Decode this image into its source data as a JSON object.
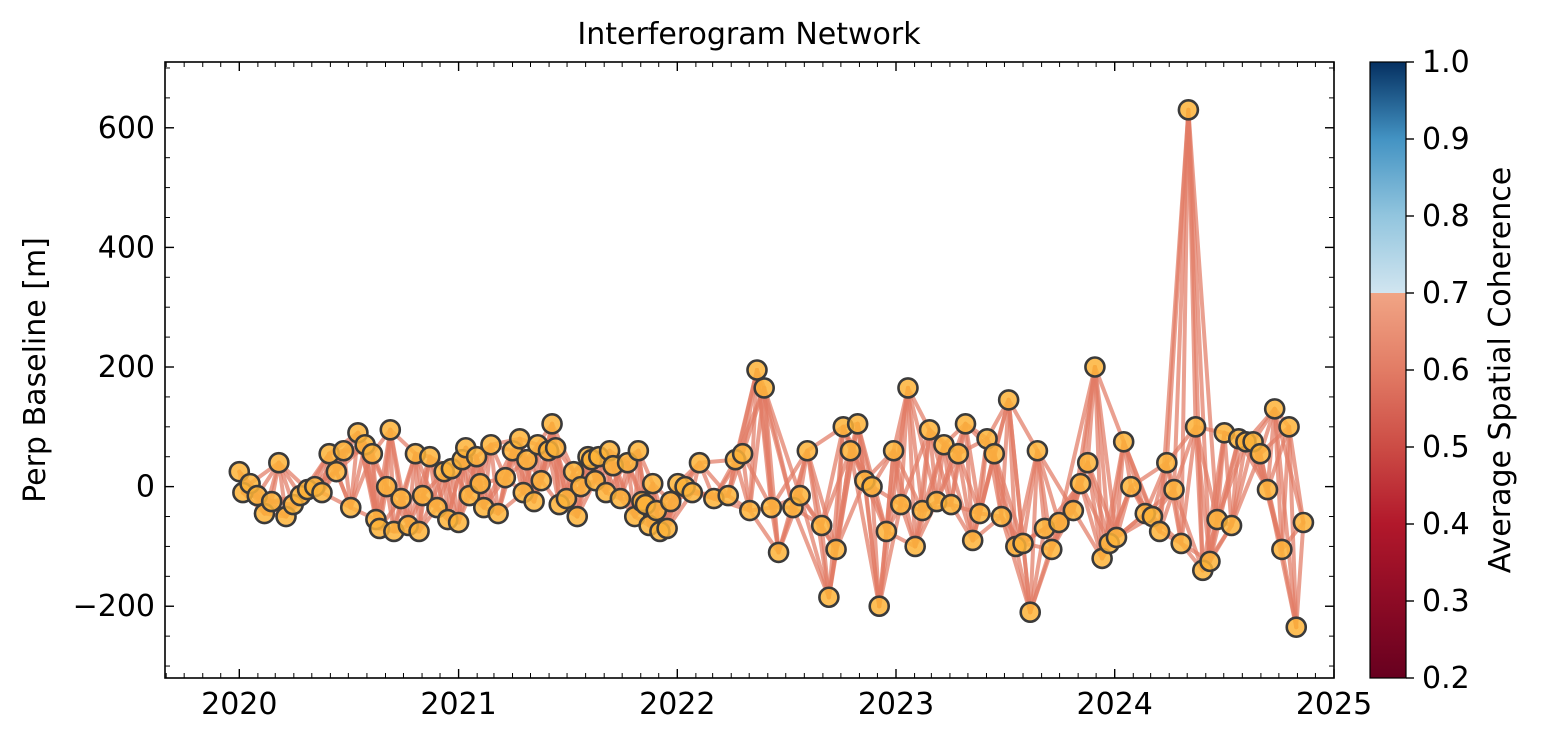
{
  "chart_data": {
    "type": "scatter",
    "title": "Interferogram Network",
    "xlabel": "",
    "ylabel": "Perp Baseline [m]",
    "xlim": [
      "2019-08-30",
      "2025-01-01"
    ],
    "ylim": [
      -320,
      710
    ],
    "x_ticks": [
      "2020",
      "2021",
      "2022",
      "2023",
      "2024",
      "2025"
    ],
    "x_tick_dates": [
      "2020-01-01",
      "2021-01-01",
      "2022-01-01",
      "2023-01-01",
      "2024-01-01",
      "2025-01-01"
    ],
    "y_ticks": [
      -200,
      0,
      200,
      400,
      600
    ],
    "y_tick_labels": [
      "−200",
      "0",
      "200",
      "400",
      "600"
    ],
    "grid": false,
    "legend": "none",
    "colors": {
      "marker_fill": "#fdb338",
      "marker_edge": "#3a3a3a",
      "edge_line": "#e27c65"
    },
    "edge_coherence_approx": 0.62,
    "colorbar": {
      "label": "Average Spatial Coherence",
      "range": [
        0.2,
        1.0
      ],
      "ticks": [
        "0.2",
        "0.3",
        "0.4",
        "0.5",
        "0.6",
        "0.7",
        "0.8",
        "0.9",
        "1.0"
      ],
      "colormap": "RdBu",
      "stops": [
        {
          "value": 0.2,
          "color": "#67001f"
        },
        {
          "value": 0.3,
          "color": "#8d0b25"
        },
        {
          "value": 0.4,
          "color": "#b2182b"
        },
        {
          "value": 0.5,
          "color": "#cc4c45"
        },
        {
          "value": 0.6,
          "color": "#e27c65"
        },
        {
          "value": 0.7,
          "color": "#f1a585"
        },
        {
          "value": 0.7,
          "color": "#d1e5f0"
        },
        {
          "value": 0.8,
          "color": "#92c5de"
        },
        {
          "value": 0.9,
          "color": "#4393c3"
        },
        {
          "value": 1.0,
          "color": "#053061"
        }
      ]
    },
    "acquisitions": [
      {
        "date": "2020-01-01",
        "bperp": 25
      },
      {
        "date": "2020-01-07",
        "bperp": -10
      },
      {
        "date": "2020-01-19",
        "bperp": 5
      },
      {
        "date": "2020-01-31",
        "bperp": -15
      },
      {
        "date": "2020-02-12",
        "bperp": -45
      },
      {
        "date": "2020-02-24",
        "bperp": -25
      },
      {
        "date": "2020-03-07",
        "bperp": 40
      },
      {
        "date": "2020-03-19",
        "bperp": -50
      },
      {
        "date": "2020-03-31",
        "bperp": -30
      },
      {
        "date": "2020-04-12",
        "bperp": -15
      },
      {
        "date": "2020-04-24",
        "bperp": -5
      },
      {
        "date": "2020-05-06",
        "bperp": 0
      },
      {
        "date": "2020-05-18",
        "bperp": -10
      },
      {
        "date": "2020-05-30",
        "bperp": 55
      },
      {
        "date": "2020-06-11",
        "bperp": 25
      },
      {
        "date": "2020-06-23",
        "bperp": 60
      },
      {
        "date": "2020-07-05",
        "bperp": -35
      },
      {
        "date": "2020-07-17",
        "bperp": 90
      },
      {
        "date": "2020-07-29",
        "bperp": 70
      },
      {
        "date": "2020-08-10",
        "bperp": 55
      },
      {
        "date": "2020-08-16",
        "bperp": -55
      },
      {
        "date": "2020-08-22",
        "bperp": -70
      },
      {
        "date": "2020-09-03",
        "bperp": 0
      },
      {
        "date": "2020-09-09",
        "bperp": 95
      },
      {
        "date": "2020-09-15",
        "bperp": -75
      },
      {
        "date": "2020-09-27",
        "bperp": -20
      },
      {
        "date": "2020-10-09",
        "bperp": -65
      },
      {
        "date": "2020-10-21",
        "bperp": 55
      },
      {
        "date": "2020-10-27",
        "bperp": -75
      },
      {
        "date": "2020-11-02",
        "bperp": -15
      },
      {
        "date": "2020-11-14",
        "bperp": 50
      },
      {
        "date": "2020-11-26",
        "bperp": -35
      },
      {
        "date": "2020-12-08",
        "bperp": 25
      },
      {
        "date": "2020-12-14",
        "bperp": -55
      },
      {
        "date": "2020-12-20",
        "bperp": 30
      },
      {
        "date": "2021-01-01",
        "bperp": -60
      },
      {
        "date": "2021-01-07",
        "bperp": 45
      },
      {
        "date": "2021-01-13",
        "bperp": 65
      },
      {
        "date": "2021-01-19",
        "bperp": -15
      },
      {
        "date": "2021-01-31",
        "bperp": 50
      },
      {
        "date": "2021-02-06",
        "bperp": 5
      },
      {
        "date": "2021-02-12",
        "bperp": -35
      },
      {
        "date": "2021-02-24",
        "bperp": 70
      },
      {
        "date": "2021-03-08",
        "bperp": -45
      },
      {
        "date": "2021-03-20",
        "bperp": 15
      },
      {
        "date": "2021-04-01",
        "bperp": 60
      },
      {
        "date": "2021-04-13",
        "bperp": 80
      },
      {
        "date": "2021-04-19",
        "bperp": -10
      },
      {
        "date": "2021-04-25",
        "bperp": 45
      },
      {
        "date": "2021-05-07",
        "bperp": -25
      },
      {
        "date": "2021-05-13",
        "bperp": 70
      },
      {
        "date": "2021-05-19",
        "bperp": 10
      },
      {
        "date": "2021-05-31",
        "bperp": 60
      },
      {
        "date": "2021-06-06",
        "bperp": 105
      },
      {
        "date": "2021-06-12",
        "bperp": 65
      },
      {
        "date": "2021-06-18",
        "bperp": -30
      },
      {
        "date": "2021-06-30",
        "bperp": -20
      },
      {
        "date": "2021-07-12",
        "bperp": 25
      },
      {
        "date": "2021-07-18",
        "bperp": -50
      },
      {
        "date": "2021-07-24",
        "bperp": 0
      },
      {
        "date": "2021-08-05",
        "bperp": 50
      },
      {
        "date": "2021-08-11",
        "bperp": 45
      },
      {
        "date": "2021-08-17",
        "bperp": 10
      },
      {
        "date": "2021-08-23",
        "bperp": 50
      },
      {
        "date": "2021-09-04",
        "bperp": -10
      },
      {
        "date": "2021-09-10",
        "bperp": 60
      },
      {
        "date": "2021-09-16",
        "bperp": 35
      },
      {
        "date": "2021-09-28",
        "bperp": -20
      },
      {
        "date": "2021-10-10",
        "bperp": 40
      },
      {
        "date": "2021-10-22",
        "bperp": -50
      },
      {
        "date": "2021-10-28",
        "bperp": 60
      },
      {
        "date": "2021-11-03",
        "bperp": -25
      },
      {
        "date": "2021-11-09",
        "bperp": -30
      },
      {
        "date": "2021-11-15",
        "bperp": -65
      },
      {
        "date": "2021-11-21",
        "bperp": 5
      },
      {
        "date": "2021-11-27",
        "bperp": -40
      },
      {
        "date": "2021-12-03",
        "bperp": -75
      },
      {
        "date": "2021-12-15",
        "bperp": -70
      },
      {
        "date": "2021-12-21",
        "bperp": -25
      },
      {
        "date": "2022-01-02",
        "bperp": 5
      },
      {
        "date": "2022-01-14",
        "bperp": 0
      },
      {
        "date": "2022-01-26",
        "bperp": -10
      },
      {
        "date": "2022-02-07",
        "bperp": 40
      },
      {
        "date": "2022-03-03",
        "bperp": -20
      },
      {
        "date": "2022-03-27",
        "bperp": -15
      },
      {
        "date": "2022-04-08",
        "bperp": 45
      },
      {
        "date": "2022-04-20",
        "bperp": 55
      },
      {
        "date": "2022-05-02",
        "bperp": -40
      },
      {
        "date": "2022-05-14",
        "bperp": 195
      },
      {
        "date": "2022-05-26",
        "bperp": 165
      },
      {
        "date": "2022-06-07",
        "bperp": -35
      },
      {
        "date": "2022-06-19",
        "bperp": -110
      },
      {
        "date": "2022-07-13",
        "bperp": -35
      },
      {
        "date": "2022-07-25",
        "bperp": -15
      },
      {
        "date": "2022-08-06",
        "bperp": 60
      },
      {
        "date": "2022-08-30",
        "bperp": -65
      },
      {
        "date": "2022-09-11",
        "bperp": -185
      },
      {
        "date": "2022-09-23",
        "bperp": -105
      },
      {
        "date": "2022-10-05",
        "bperp": 100
      },
      {
        "date": "2022-10-17",
        "bperp": 60
      },
      {
        "date": "2022-10-29",
        "bperp": 105
      },
      {
        "date": "2022-11-10",
        "bperp": 10
      },
      {
        "date": "2022-11-22",
        "bperp": 0
      },
      {
        "date": "2022-12-04",
        "bperp": -200
      },
      {
        "date": "2022-12-16",
        "bperp": -75
      },
      {
        "date": "2022-12-28",
        "bperp": 60
      },
      {
        "date": "2023-01-09",
        "bperp": -30
      },
      {
        "date": "2023-01-21",
        "bperp": 165
      },
      {
        "date": "2023-02-02",
        "bperp": -100
      },
      {
        "date": "2023-02-14",
        "bperp": -40
      },
      {
        "date": "2023-02-26",
        "bperp": 95
      },
      {
        "date": "2023-03-10",
        "bperp": -25
      },
      {
        "date": "2023-03-22",
        "bperp": 70
      },
      {
        "date": "2023-04-03",
        "bperp": -30
      },
      {
        "date": "2023-04-15",
        "bperp": 55
      },
      {
        "date": "2023-04-27",
        "bperp": 105
      },
      {
        "date": "2023-05-09",
        "bperp": -90
      },
      {
        "date": "2023-05-21",
        "bperp": -45
      },
      {
        "date": "2023-06-02",
        "bperp": 80
      },
      {
        "date": "2023-06-14",
        "bperp": 55
      },
      {
        "date": "2023-06-26",
        "bperp": -50
      },
      {
        "date": "2023-07-08",
        "bperp": 145
      },
      {
        "date": "2023-07-20",
        "bperp": -100
      },
      {
        "date": "2023-08-01",
        "bperp": -95
      },
      {
        "date": "2023-08-13",
        "bperp": -210
      },
      {
        "date": "2023-08-25",
        "bperp": 60
      },
      {
        "date": "2023-09-06",
        "bperp": -70
      },
      {
        "date": "2023-09-18",
        "bperp": -105
      },
      {
        "date": "2023-09-30",
        "bperp": -60
      },
      {
        "date": "2023-10-24",
        "bperp": -40
      },
      {
        "date": "2023-11-05",
        "bperp": 5
      },
      {
        "date": "2023-11-17",
        "bperp": 40
      },
      {
        "date": "2023-11-29",
        "bperp": 200
      },
      {
        "date": "2023-12-11",
        "bperp": -120
      },
      {
        "date": "2023-12-23",
        "bperp": -95
      },
      {
        "date": "2024-01-04",
        "bperp": -85
      },
      {
        "date": "2024-01-16",
        "bperp": 75
      },
      {
        "date": "2024-01-28",
        "bperp": 0
      },
      {
        "date": "2024-02-21",
        "bperp": -45
      },
      {
        "date": "2024-03-04",
        "bperp": -50
      },
      {
        "date": "2024-03-16",
        "bperp": -75
      },
      {
        "date": "2024-03-28",
        "bperp": 40
      },
      {
        "date": "2024-04-09",
        "bperp": -5
      },
      {
        "date": "2024-04-21",
        "bperp": -95
      },
      {
        "date": "2024-05-03",
        "bperp": 630
      },
      {
        "date": "2024-05-15",
        "bperp": 100
      },
      {
        "date": "2024-05-27",
        "bperp": -140
      },
      {
        "date": "2024-06-08",
        "bperp": -125
      },
      {
        "date": "2024-06-20",
        "bperp": -55
      },
      {
        "date": "2024-07-02",
        "bperp": 90
      },
      {
        "date": "2024-07-14",
        "bperp": -65
      },
      {
        "date": "2024-07-26",
        "bperp": 80
      },
      {
        "date": "2024-08-07",
        "bperp": 75
      },
      {
        "date": "2024-08-19",
        "bperp": 75
      },
      {
        "date": "2024-08-31",
        "bperp": 55
      },
      {
        "date": "2024-09-12",
        "bperp": -5
      },
      {
        "date": "2024-09-24",
        "bperp": 130
      },
      {
        "date": "2024-10-06",
        "bperp": -105
      },
      {
        "date": "2024-10-18",
        "bperp": 100
      },
      {
        "date": "2024-10-30",
        "bperp": -235
      },
      {
        "date": "2024-11-11",
        "bperp": -60
      }
    ]
  }
}
